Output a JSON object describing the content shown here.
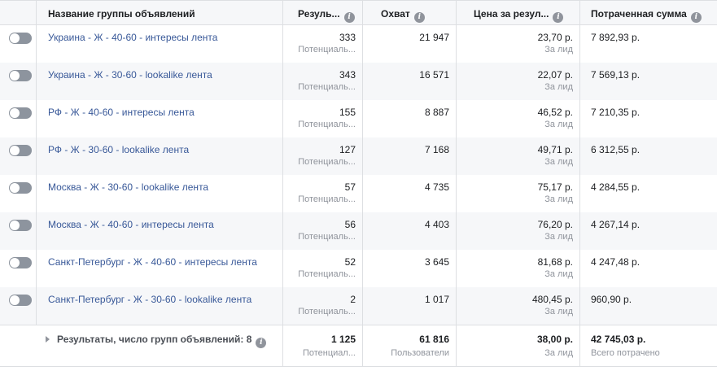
{
  "header": {
    "name": "Название группы объявлений",
    "results": "Резуль...",
    "reach": "Охват",
    "cost": "Цена за резул...",
    "spent": "Потраченная сумма"
  },
  "rows": [
    {
      "name": "Украина - Ж - 40-60 - интересы лента",
      "results": "333",
      "results_sub": "Потенциаль...",
      "reach": "21 947",
      "cost": "23,70 р.",
      "cost_sub": "За лид",
      "spent": "7 892,93 р."
    },
    {
      "name": "Украина - Ж - 30-60 - lookalike лента",
      "results": "343",
      "results_sub": "Потенциаль...",
      "reach": "16 571",
      "cost": "22,07 р.",
      "cost_sub": "За лид",
      "spent": "7 569,13 р."
    },
    {
      "name": "РФ - Ж - 40-60 - интересы лента",
      "results": "155",
      "results_sub": "Потенциаль...",
      "reach": "8 887",
      "cost": "46,52 р.",
      "cost_sub": "За лид",
      "spent": "7 210,35 р."
    },
    {
      "name": "РФ - Ж - 30-60 - lookalike лента",
      "results": "127",
      "results_sub": "Потенциаль...",
      "reach": "7 168",
      "cost": "49,71 р.",
      "cost_sub": "За лид",
      "spent": "6 312,55 р."
    },
    {
      "name": "Москва - Ж - 30-60 - lookalike лента",
      "results": "57",
      "results_sub": "Потенциаль...",
      "reach": "4 735",
      "cost": "75,17 р.",
      "cost_sub": "За лид",
      "spent": "4 284,55 р."
    },
    {
      "name": "Москва - Ж - 40-60 - интересы лента",
      "results": "56",
      "results_sub": "Потенциаль...",
      "reach": "4 403",
      "cost": "76,20 р.",
      "cost_sub": "За лид",
      "spent": "4 267,14 р."
    },
    {
      "name": "Санкт-Петербург - Ж - 40-60 - интересы лента",
      "results": "52",
      "results_sub": "Потенциаль...",
      "reach": "3 645",
      "cost": "81,68 р.",
      "cost_sub": "За лид",
      "spent": "4 247,48 р."
    },
    {
      "name": "Санкт-Петербург - Ж - 30-60 - lookalike лента",
      "results": "2",
      "results_sub": "Потенциаль...",
      "reach": "1 017",
      "cost": "480,45 р.",
      "cost_sub": "За лид",
      "spent": "960,90 р."
    }
  ],
  "total": {
    "label": "Результаты, число групп объявлений: 8",
    "results": "1 125",
    "results_sub": "Потенциал...",
    "reach": "61 816",
    "reach_sub": "Пользователи",
    "cost": "38,00 р.",
    "cost_sub": "За лид",
    "spent": "42 745,03 р.",
    "spent_sub": "Всего потрачено"
  },
  "icons": {
    "info": "info-icon",
    "toggle": "toggle-switch",
    "expand": "caret-right-icon"
  },
  "colors": {
    "link": "#385898",
    "header_bg": "#f6f7f9",
    "muted": "#90949c",
    "toggle_off": "#8d949e"
  }
}
